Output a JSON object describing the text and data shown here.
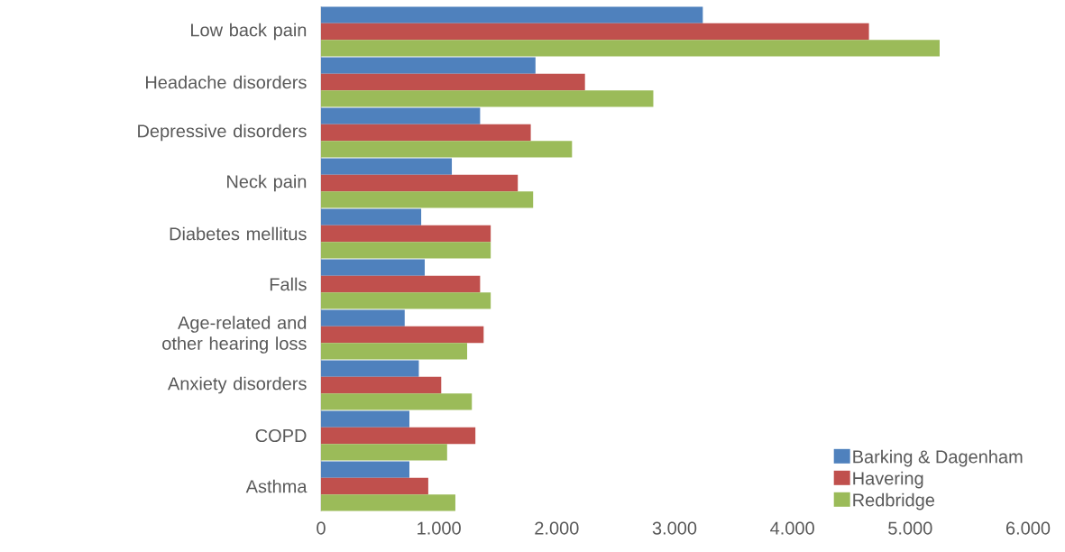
{
  "chart_data": {
    "type": "bar",
    "orientation": "horizontal",
    "categories": [
      "Low back pain",
      "Headache disorders",
      "Depressive disorders",
      "Neck pain",
      "Diabetes mellitus",
      "Falls",
      "Age-related and other hearing loss",
      "Anxiety disorders",
      "COPD",
      "Asthma"
    ],
    "series": [
      {
        "name": "Barking & Dagenham",
        "color": "#4f81bd",
        "values": [
          3240,
          1820,
          1350,
          1110,
          850,
          880,
          710,
          830,
          750,
          750
        ]
      },
      {
        "name": "Havering",
        "color": "#c0504d",
        "values": [
          4650,
          2240,
          1780,
          1670,
          1440,
          1350,
          1380,
          1020,
          1310,
          910
        ]
      },
      {
        "name": "Redbridge",
        "color": "#9bbb59",
        "values": [
          5250,
          2820,
          2130,
          1800,
          1440,
          1440,
          1240,
          1280,
          1070,
          1140
        ]
      }
    ],
    "xlim": [
      0,
      6000
    ],
    "xticks": [
      0,
      {
        "value": 1000,
        "label": "1.000"
      },
      {
        "value": 2000,
        "label": "2.000"
      },
      {
        "value": 3000,
        "label": "3.000"
      },
      {
        "value": 4000,
        "label": "4.000"
      },
      {
        "value": 5000,
        "label": "5.000"
      },
      {
        "value": 6000,
        "label": "6.000"
      }
    ],
    "legend": "bottom right"
  }
}
